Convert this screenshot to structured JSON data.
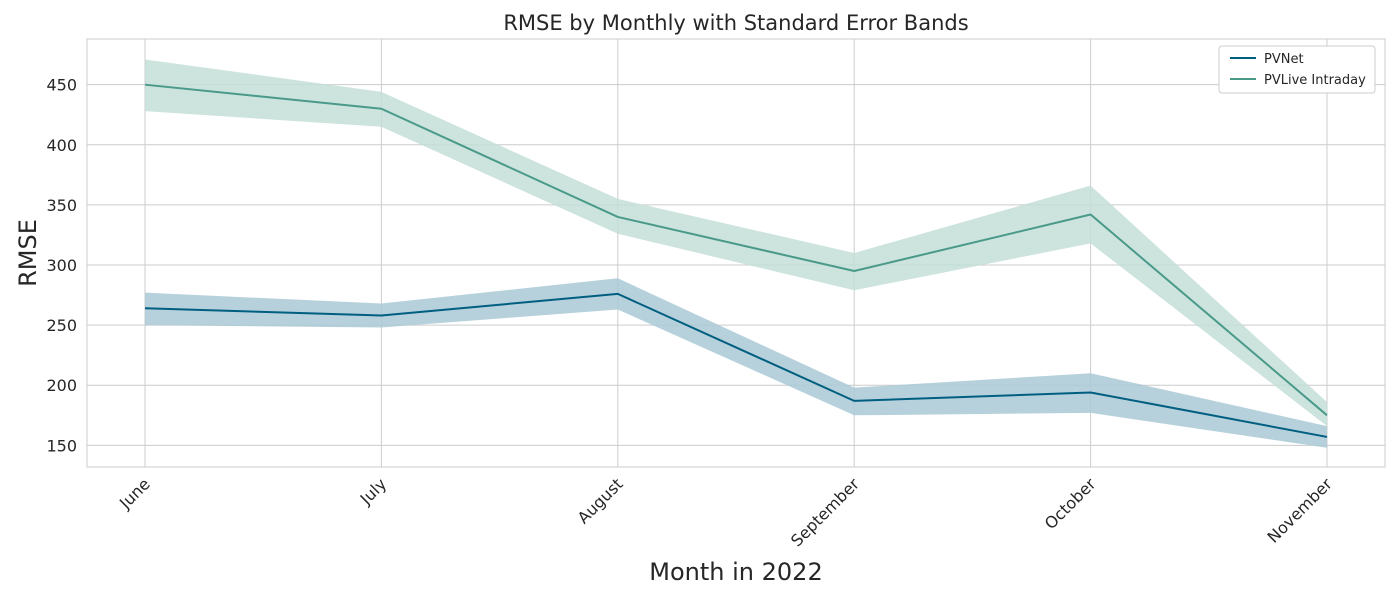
{
  "chart_data": {
    "type": "line",
    "title": "RMSE by Monthly with Standard Error Bands",
    "xlabel": "Month in 2022",
    "ylabel": "RMSE",
    "categories": [
      "June",
      "July",
      "August",
      "September",
      "October",
      "November"
    ],
    "yticks": [
      150,
      200,
      250,
      300,
      350,
      400,
      450
    ],
    "ylim": [
      132,
      488
    ],
    "grid": true,
    "legend_position": "top-right",
    "series": [
      {
        "name": "PVNet",
        "color": "#005f80",
        "band_color": "#a9c9d6",
        "values": [
          264,
          258,
          276,
          187,
          194,
          157
        ],
        "lower": [
          250,
          248,
          263,
          175,
          177,
          148
        ],
        "upper": [
          277,
          268,
          289,
          198,
          210,
          166
        ]
      },
      {
        "name": "PVLive Intraday",
        "color": "#4a9a8a",
        "band_color": "#c3ded8",
        "values": [
          450,
          430,
          340,
          295,
          342,
          175
        ],
        "lower": [
          428,
          415,
          326,
          279,
          318,
          166
        ],
        "upper": [
          471,
          444,
          355,
          310,
          366,
          186
        ]
      }
    ]
  }
}
